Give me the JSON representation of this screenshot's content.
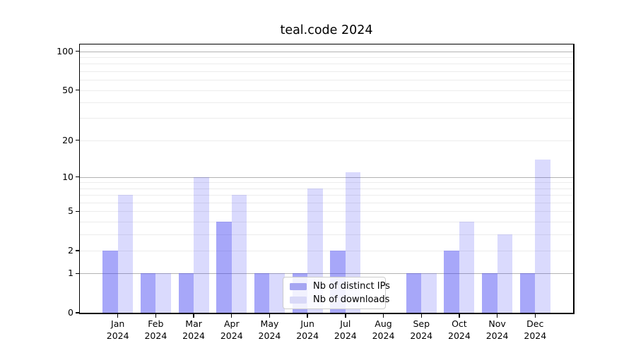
{
  "title": "teal.code 2024",
  "colors": {
    "bar_fills": [
      "rgba(59,59,242,0.45)",
      "rgba(59,59,242,0.19)"
    ],
    "legend_swatches": [
      "#a6a6f2",
      "#d9d9f8"
    ],
    "grid_major": "#b3b3b3",
    "grid_minor": "#ececec",
    "axis_text": "#000000"
  },
  "chart_data": {
    "type": "bar",
    "title": "teal.code 2024",
    "categories": [
      "Jan 2024",
      "Feb 2024",
      "Mar 2024",
      "Apr 2024",
      "May 2024",
      "Jun 2024",
      "Jul 2024",
      "Aug 2024",
      "Sep 2024",
      "Oct 2024",
      "Nov 2024",
      "Dec 2024"
    ],
    "series": [
      {
        "name": "Nb of distinct IPs",
        "values": [
          2,
          1,
          1,
          4,
          1,
          1,
          2,
          0,
          1,
          2,
          1,
          1
        ]
      },
      {
        "name": "Nb of downloads",
        "values": [
          7,
          1,
          10,
          7,
          1,
          8,
          11,
          0,
          1,
          4,
          3,
          14
        ]
      }
    ],
    "xlabel": "",
    "ylabel": "",
    "yscale": "log1p",
    "ylim": [
      0,
      113
    ],
    "y_tick_labels": [
      0,
      1,
      2,
      5,
      10,
      20,
      50,
      100
    ],
    "grid_major_values": [
      1,
      10,
      100
    ],
    "grid_minor_values": [
      2,
      3,
      4,
      5,
      6,
      7,
      8,
      9,
      20,
      30,
      40,
      50,
      60,
      70,
      80,
      90
    ],
    "grid": "on",
    "legend_position": "lower center"
  }
}
